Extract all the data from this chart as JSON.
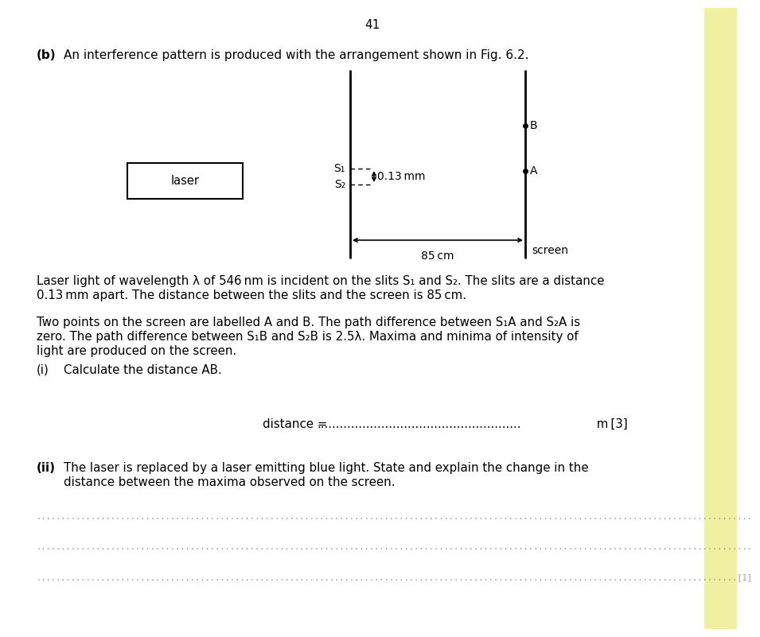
{
  "page_number": "41",
  "bg_color": "#ffffff",
  "fig_width": 9.16,
  "fig_height": 7.81,
  "part_b_label": "(b)",
  "part_b_text": "An interference pattern is produced with the arrangement shown in Fig. 6.2.",
  "laser_label": "laser",
  "s1_label": "S₁",
  "s2_label": "S₂",
  "slit_sep_label": "0.13 mm",
  "dist_label": "85 cm",
  "screen_label": "screen",
  "point_A": "A",
  "point_B": "B",
  "right_border_color": "#f0f0a0",
  "text_color": "#1a1a1a",
  "dot_color": "#999999",
  "para1_line1": "Laser light of wavelength λ of 546 nm is incident on the slits S₁ and S₂. The slits are a distance",
  "para1_line2": "0.13 mm apart. The distance between the slits and the screen is 85 cm.",
  "para2_line1": "Two points on the screen are labelled A and B. The path difference between S₁A and S₂A is",
  "para2_line2": "zero. The path difference between S₁B and S₂B is 2.5λ. Maxima and minima of intensity of",
  "para2_line3": "light are produced on the screen.",
  "part_i_label": "(i)",
  "part_i_text": "Calculate the distance AB.",
  "dist_answer_prefix": "distance = ",
  "dist_dots": "......................................................",
  "dist_suffix": " m [3]",
  "part_ii_label": "(ii)",
  "part_ii_line1": "The laser is replaced by a laser emitting blue light. State and explain the change in the",
  "part_ii_line2": "distance between the maxima observed on the screen.",
  "dotline1": "................................................................................................................................................",
  "dotline2": "................................................................................................................................................",
  "dotline3": ".............................................................................................................................................[1]"
}
